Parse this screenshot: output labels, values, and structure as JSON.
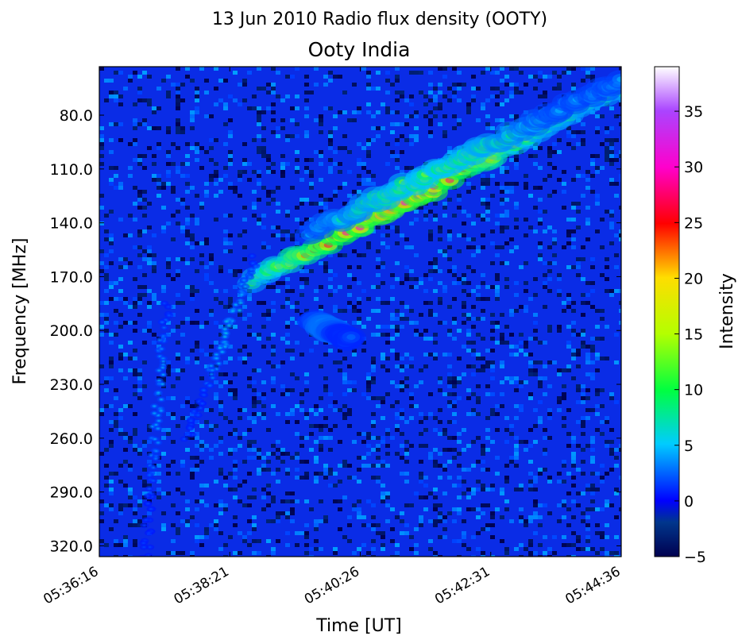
{
  "chart_data": {
    "type": "heatmap",
    "title": "13 Jun 2010 Radio flux density (OOTY)",
    "subtitle": "Ooty India",
    "xlabel": "Time [UT]",
    "ylabel": "Frequency [MHz]",
    "colorbar_label": "Intensity",
    "x_ticks": [
      "05:36:16",
      "05:38:21",
      "05:40:26",
      "05:42:31",
      "05:44:36"
    ],
    "xlim": [
      "05:36:16",
      "05:44:36"
    ],
    "y_ticks": [
      "80.0",
      "110.0",
      "140.0",
      "170.0",
      "200.0",
      "230.0",
      "260.0",
      "290.0",
      "320.0"
    ],
    "ylim": [
      326,
      53
    ],
    "y_inverted": true,
    "colorbar_ticks": [
      "35",
      "30",
      "25",
      "20",
      "15",
      "10",
      "5",
      "0",
      "−5"
    ],
    "colorbar_range": [
      -5,
      39
    ],
    "colormap": "spectral",
    "background_level": 0,
    "features": [
      {
        "kind": "drift-burst",
        "from": [
          "05:38:45",
          172
        ],
        "to": [
          "05:44:36",
          65
        ],
        "peak_intensity": 32
      },
      {
        "kind": "drift-burst",
        "from": [
          "05:39:40",
          145
        ],
        "to": [
          "05:44:36",
          60
        ],
        "peak_intensity": 14
      },
      {
        "kind": "drift-burst",
        "from": [
          "05:39:40",
          195
        ],
        "to": [
          "05:40:15",
          205
        ],
        "peak_intensity": 8
      },
      {
        "kind": "type-III-burst",
        "from": [
          "05:37:20",
          185
        ],
        "to": [
          "05:37:00",
          326
        ],
        "peak_intensity": 5
      },
      {
        "kind": "type-III-burst",
        "from": [
          "05:38:45",
          160
        ],
        "to": [
          "05:37:40",
          260
        ],
        "peak_intensity": 6
      }
    ]
  }
}
